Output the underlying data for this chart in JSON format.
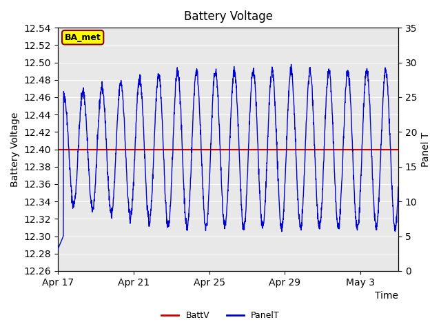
{
  "title": "Battery Voltage",
  "xlabel": "Time",
  "ylabel_left": "Battery Voltage",
  "ylabel_right": "Panel T",
  "ylim_left": [
    12.26,
    12.54
  ],
  "ylim_right": [
    0,
    35
  ],
  "yticks_left": [
    12.26,
    12.28,
    12.3,
    12.32,
    12.34,
    12.36,
    12.38,
    12.4,
    12.42,
    12.44,
    12.46,
    12.48,
    12.5,
    12.52,
    12.54
  ],
  "yticks_right": [
    0,
    5,
    10,
    15,
    20,
    25,
    30,
    35
  ],
  "batt_v": 12.4,
  "batt_color": "#cc0000",
  "panel_color": "#0000cc",
  "bg_color_inner": "#e8e8e8",
  "bg_color_outer": "#ffffff",
  "grid_color": "#ffffff",
  "annotation_text": "BA_met",
  "annotation_bg": "#ffff00",
  "annotation_border": "#8b0000",
  "x_tick_labels": [
    "Apr 17",
    "Apr 21",
    "Apr 25",
    "Apr 29",
    "May 3"
  ],
  "x_tick_positions": [
    0,
    4,
    8,
    12,
    16
  ]
}
